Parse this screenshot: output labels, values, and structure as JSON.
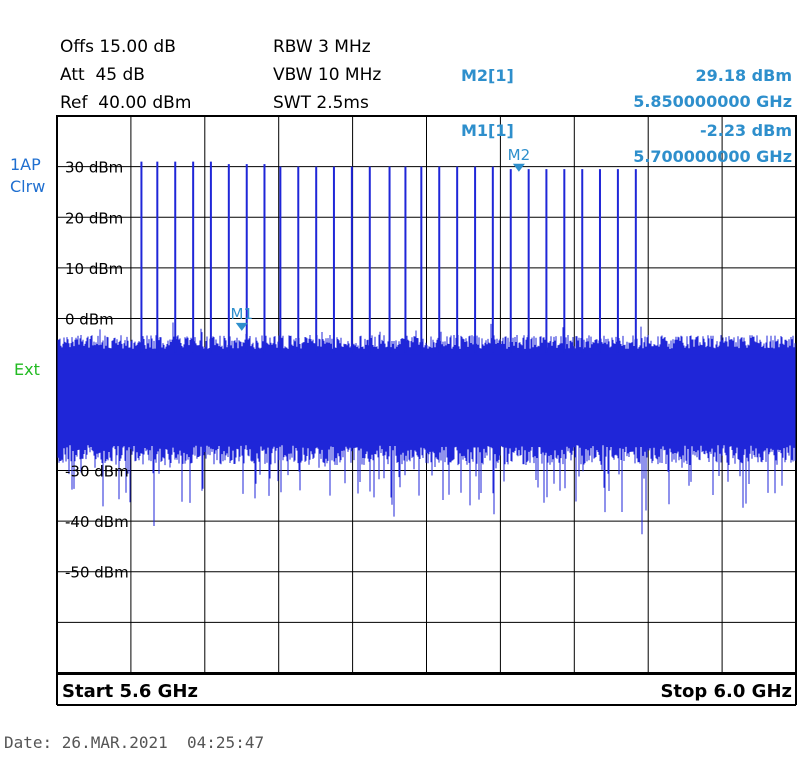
{
  "header": {
    "offs": "Offs 15.00 dB",
    "att": "Att  45 dB",
    "ref": "Ref  40.00 dBm",
    "rbw": "RBW 3 MHz",
    "vbw": "VBW 10 MHz",
    "swt": "SWT 2.5ms"
  },
  "markers": {
    "m2_title": "M2[1]",
    "m2_level": "29.18 dBm",
    "m2_freq": "5.850000000 GHz",
    "m1_title": "M1[1]",
    "m1_level": "-2.23 dBm",
    "m1_freq": "5.700000000 GHz"
  },
  "side": {
    "trace_line1": "1AP",
    "trace_line2": "Clrw",
    "ext": "Ext"
  },
  "footer": {
    "start": "Start 5.6 GHz",
    "stop": "Stop 6.0 GHz"
  },
  "date": "Date: 26.MAR.2021  04:25:47",
  "colors": {
    "trace": "#1f26d8",
    "marker": "#2e8fcc",
    "grid": "#000000"
  },
  "chart_data": {
    "type": "line",
    "title": "",
    "xlabel": "",
    "ylabel": "",
    "xlim": [
      5.6,
      6.0
    ],
    "ylim": [
      -70,
      40
    ],
    "x_unit": "GHz",
    "y_unit": "dBm",
    "grid": true,
    "y_tick_labels": [
      {
        "value": 30,
        "label": "30 dBm"
      },
      {
        "value": 20,
        "label": "20 dBm"
      },
      {
        "value": 10,
        "label": "10 dBm"
      },
      {
        "value": 0,
        "label": "0 dBm"
      },
      {
        "value": -30,
        "label": "-30 dBm"
      },
      {
        "value": -40,
        "label": "-40 dBm"
      },
      {
        "value": -50,
        "label": "-50 dBm"
      }
    ],
    "noise_floor": {
      "top_dbm": -6,
      "bottom_dbm": -25
    },
    "spur_peaks_ghz": [
      5.6457,
      5.6543,
      5.664,
      5.6737,
      5.6833,
      5.693,
      5.7027,
      5.7123,
      5.7209,
      5.7306,
      5.7403,
      5.7499,
      5.7596,
      5.7693,
      5.78,
      5.7886,
      5.7972,
      5.8069,
      5.8166,
      5.8263,
      5.8359,
      5.8456,
      5.8553,
      5.8649,
      5.8746,
      5.8843,
      5.8939,
      5.9036,
      5.9133
    ],
    "spur_peak_dbm": [
      31,
      31,
      31,
      31,
      31,
      30.5,
      30.5,
      30.5,
      30,
      30,
      30,
      30,
      30,
      30,
      30,
      30,
      30,
      30,
      30,
      30,
      30,
      29.5,
      29.5,
      29.5,
      29.5,
      29.5,
      29.5,
      29.5,
      29.5
    ],
    "markers": [
      {
        "name": "M1",
        "x": 5.7,
        "y": -2.23
      },
      {
        "name": "M2",
        "x": 5.85,
        "y": 29.18
      }
    ]
  }
}
